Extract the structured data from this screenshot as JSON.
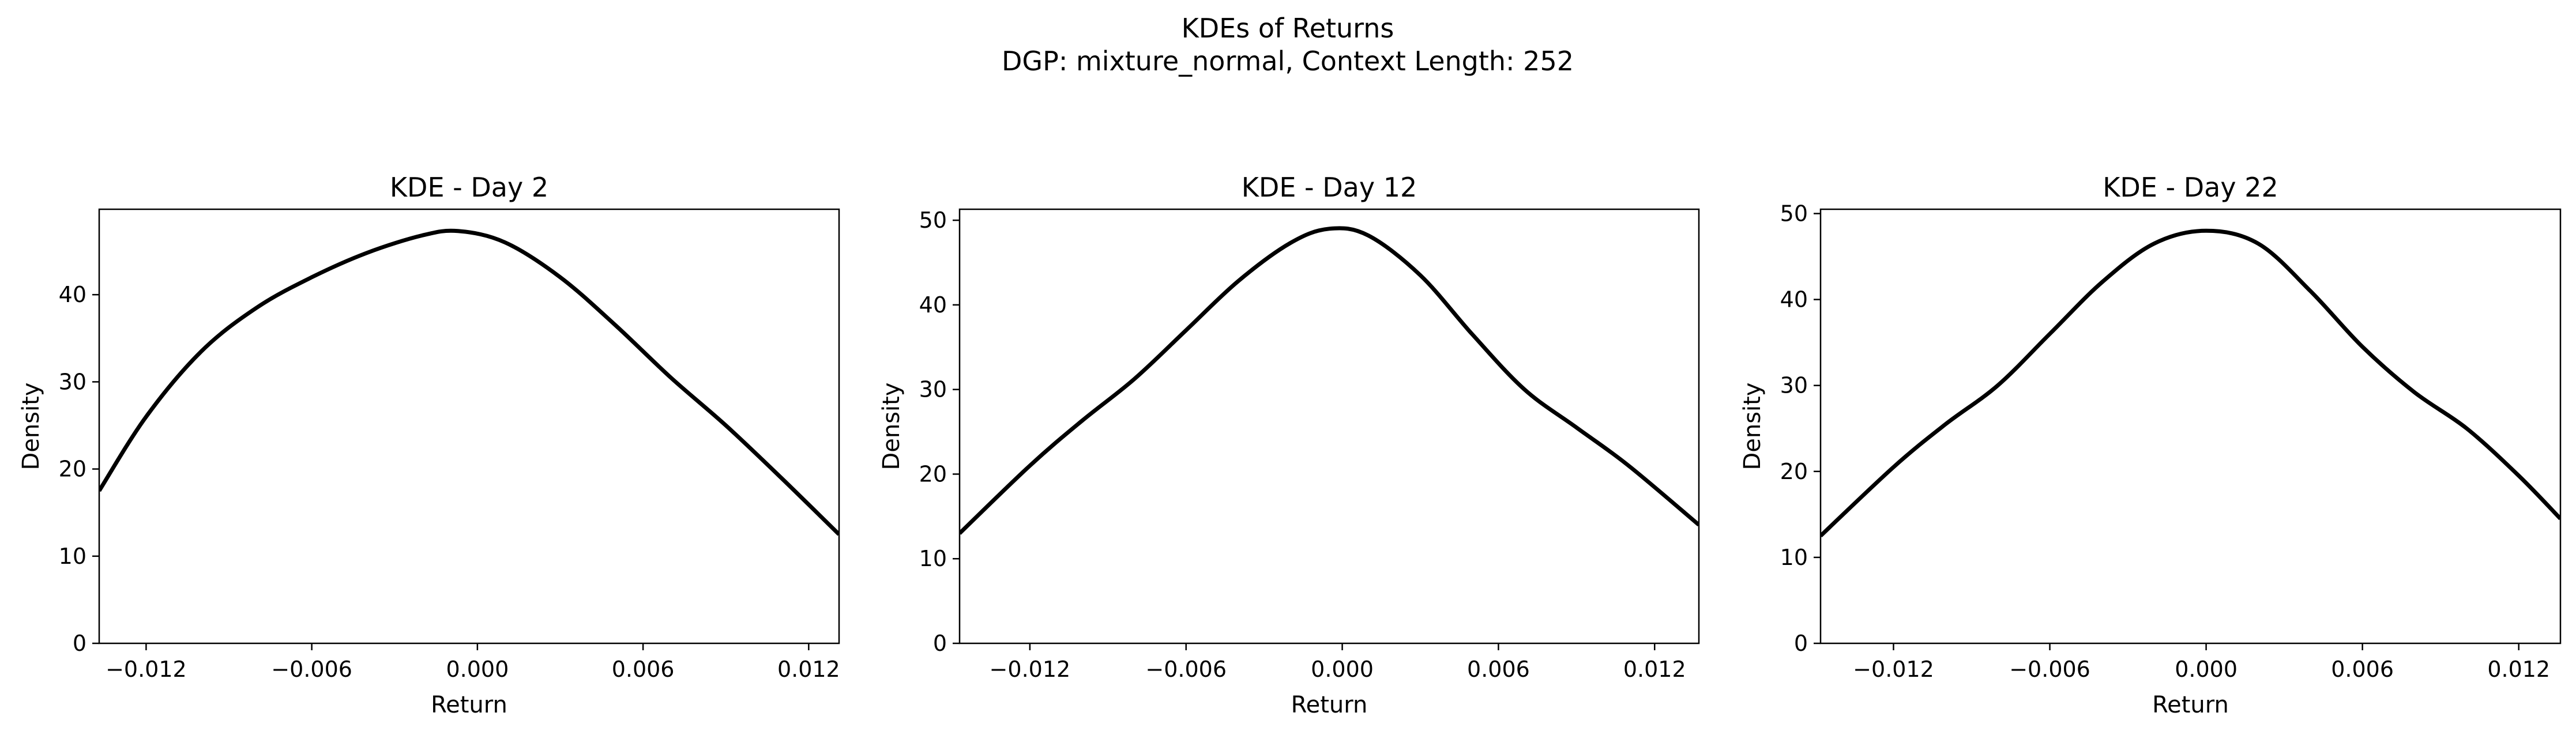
{
  "figure": {
    "title": "KDEs of Returns",
    "subtitle": "DGP: mixture_normal, Context Length: 252"
  },
  "chart_data": [
    {
      "type": "line",
      "title": "KDE - Day 2",
      "xlabel": "Return",
      "ylabel": "Density",
      "xlim": [
        -0.0137,
        0.0131
      ],
      "ylim": [
        0,
        49.8
      ],
      "xticks": [
        -0.012,
        -0.006,
        0.0,
        0.006,
        0.012
      ],
      "xtick_labels": [
        "−0.012",
        "−0.006",
        "0.000",
        "0.006",
        "0.012"
      ],
      "yticks": [
        0,
        10,
        20,
        30,
        40
      ],
      "ytick_labels": [
        "0",
        "10",
        "20",
        "30",
        "40"
      ],
      "grid": false,
      "series": [
        {
          "color": "#000000",
          "x": [
            -0.0137,
            -0.012,
            -0.01,
            -0.008,
            -0.006,
            -0.004,
            -0.002,
            -0.0007,
            0.001,
            0.003,
            0.005,
            0.007,
            0.009,
            0.011,
            0.0131
          ],
          "y": [
            17.5,
            26.0,
            33.5,
            38.5,
            42.0,
            44.8,
            46.8,
            47.3,
            46.0,
            42.0,
            36.5,
            30.5,
            25.0,
            19.0,
            12.5
          ]
        }
      ]
    },
    {
      "type": "line",
      "title": "KDE - Day 12",
      "xlabel": "Return",
      "ylabel": "Density",
      "xlim": [
        -0.0147,
        0.0137
      ],
      "ylim": [
        0,
        51.3
      ],
      "xticks": [
        -0.012,
        -0.006,
        0.0,
        0.006,
        0.012
      ],
      "xtick_labels": [
        "−0.012",
        "−0.006",
        "0.000",
        "0.006",
        "0.012"
      ],
      "yticks": [
        0,
        10,
        20,
        30,
        40,
        50
      ],
      "ytick_labels": [
        "0",
        "10",
        "20",
        "30",
        "40",
        "50"
      ],
      "grid": false,
      "series": [
        {
          "color": "#000000",
          "x": [
            -0.0147,
            -0.012,
            -0.01,
            -0.008,
            -0.006,
            -0.004,
            -0.002,
            -0.0005,
            0.001,
            0.003,
            0.005,
            0.007,
            0.009,
            0.011,
            0.0137
          ],
          "y": [
            13.0,
            21.0,
            26.3,
            31.2,
            37.0,
            42.8,
            47.3,
            49.0,
            48.2,
            43.5,
            36.5,
            30.0,
            25.5,
            21.0,
            14.0
          ]
        }
      ]
    },
    {
      "type": "line",
      "title": "KDE - Day 22",
      "xlabel": "Return",
      "ylabel": "Density",
      "xlim": [
        -0.0148,
        0.0136
      ],
      "ylim": [
        0,
        50.5
      ],
      "xticks": [
        -0.012,
        -0.006,
        0.0,
        0.006,
        0.012
      ],
      "xtick_labels": [
        "−0.012",
        "−0.006",
        "0.000",
        "0.006",
        "0.012"
      ],
      "yticks": [
        0,
        10,
        20,
        30,
        40,
        50
      ],
      "ytick_labels": [
        "0",
        "10",
        "20",
        "30",
        "40",
        "50"
      ],
      "grid": false,
      "series": [
        {
          "color": "#000000",
          "x": [
            -0.0148,
            -0.012,
            -0.01,
            -0.008,
            -0.006,
            -0.004,
            -0.002,
            0.0,
            0.002,
            0.004,
            0.006,
            0.008,
            0.01,
            0.012,
            0.0136
          ],
          "y": [
            12.5,
            20.5,
            25.5,
            30.0,
            36.0,
            42.0,
            46.5,
            48.0,
            46.5,
            41.0,
            34.5,
            29.2,
            25.0,
            19.5,
            14.5
          ]
        }
      ]
    }
  ]
}
